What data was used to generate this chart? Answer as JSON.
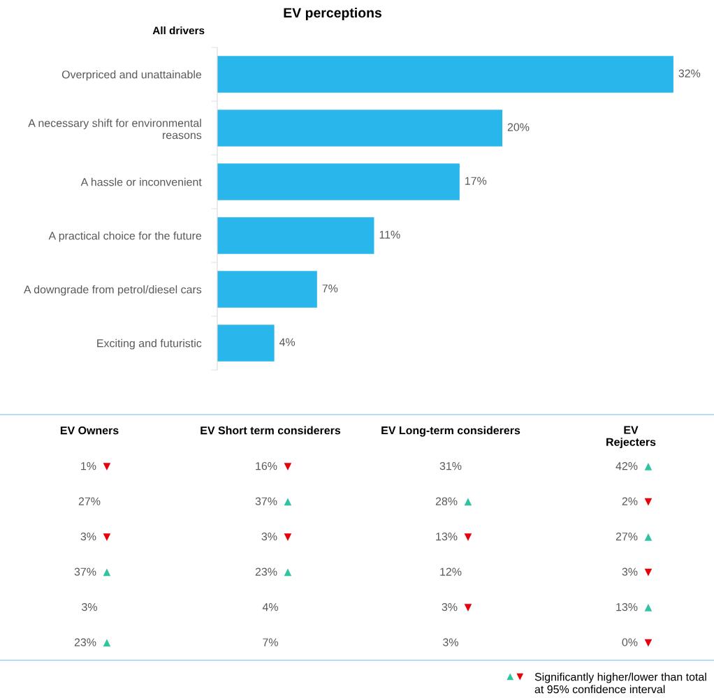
{
  "chart_data": [
    {
      "type": "bar",
      "orientation": "horizontal",
      "title": "EV perceptions",
      "annotations": [
        "All drivers"
      ],
      "categories": [
        "Overpriced and unattainable",
        "A necessary shift for environmental reasons",
        "A hassle or inconvenient",
        "A practical choice for the future",
        "A downgrade from petrol/diesel cars",
        "Exciting and futuristic"
      ],
      "values": [
        32,
        20,
        17,
        11,
        7,
        4
      ],
      "color": "#29b6ea",
      "value_labels": [
        "32%",
        "20%",
        "17%",
        "11%",
        "7%",
        "4%"
      ],
      "grid": false,
      "legend": false
    },
    {
      "type": "other",
      "annotations": [
        "EV Owners",
        "EV Short term considerers",
        "EV Long-term considerers",
        "EV\nRejecters",
        "1% ▼",
        "16% ▼",
        "31%",
        "42% ▲",
        "27%",
        "37% ▲",
        "28% ▲",
        "2% ▼",
        "3% ▼",
        "3% ▼",
        "13% ▼",
        "27% ▲",
        "37% ▲",
        "23% ▲",
        "12%",
        "3% ▼",
        "3%",
        "4%",
        "3% ▼",
        "13% ▲",
        "23% ▲",
        "7%",
        "3%",
        "0% ▼",
        "▲",
        "▼",
        "Significantly higher/lower than total\nat 95% confidence interval"
      ],
      "colors": [
        null,
        null,
        null,
        null,
        "#e8000b",
        "#e8000b",
        null,
        "#2ec4a0",
        null,
        "#2ec4a0",
        "#2ec4a0",
        "#e8000b",
        "#e8000b",
        "#e8000b",
        "#e8000b",
        "#2ec4a0",
        "#2ec4a0",
        "#2ec4a0",
        null,
        "#e8000b",
        null,
        null,
        "#e8000b",
        "#2ec4a0",
        "#2ec4a0",
        null,
        null,
        "#e8000b",
        "#2ec4a0",
        "#e8000b",
        null
      ]
    }
  ]
}
